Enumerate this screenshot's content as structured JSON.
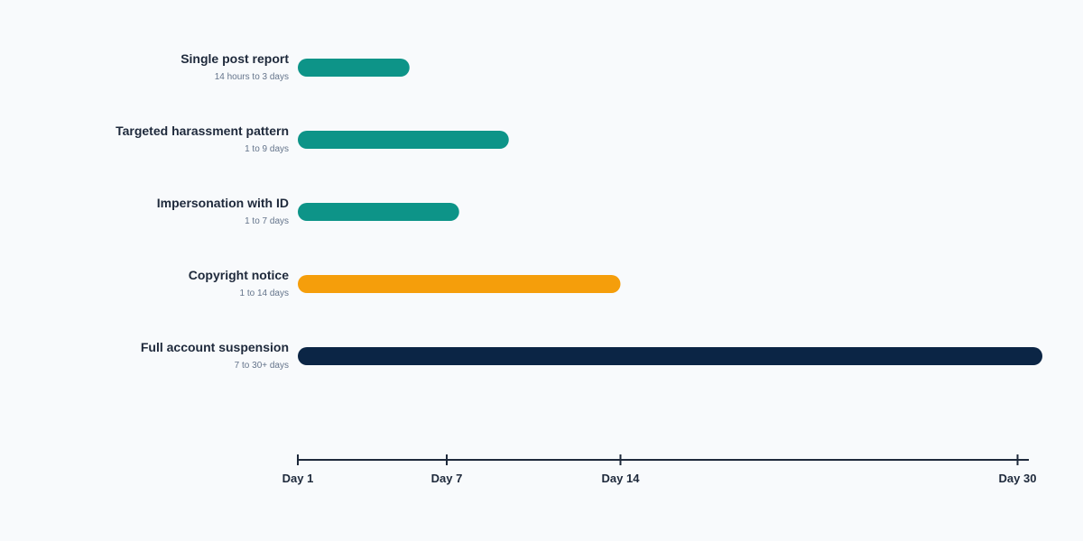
{
  "chart_data": {
    "type": "bar",
    "orientation": "horizontal",
    "title": "",
    "xlabel": "",
    "ylabel": "",
    "x_unit": "day",
    "xlim": [
      1,
      32
    ],
    "grid": false,
    "legend": "none",
    "colors": {
      "teal": "#0d9488",
      "amber": "#f59e0b",
      "navy": "#0b2545",
      "axis": "#1e293b",
      "background": "#f8fafc"
    },
    "rows": [
      {
        "label": "Single post report",
        "range_label": "14 hours to 3 days",
        "start": 1,
        "end": 5.5,
        "color": "#0d9488"
      },
      {
        "label": "Targeted harassment pattern",
        "range_label": "1 to 9 days",
        "start": 1,
        "end": 9.5,
        "color": "#0d9488"
      },
      {
        "label": "Impersonation with ID",
        "range_label": "1 to 7 days",
        "start": 1,
        "end": 7.5,
        "color": "#0d9488"
      },
      {
        "label": "Copyright notice",
        "range_label": "1 to 14 days",
        "start": 1,
        "end": 14,
        "color": "#f59e0b"
      },
      {
        "label": "Full account suspension",
        "range_label": "7 to 30+ days",
        "start": 1,
        "end": 31,
        "color": "#0b2545"
      }
    ],
    "ticks": [
      {
        "value": 1,
        "label": "Day 1"
      },
      {
        "value": 7,
        "label": "Day 7"
      },
      {
        "value": 14,
        "label": "Day 14"
      },
      {
        "value": 30,
        "label": "Day 30"
      }
    ]
  }
}
